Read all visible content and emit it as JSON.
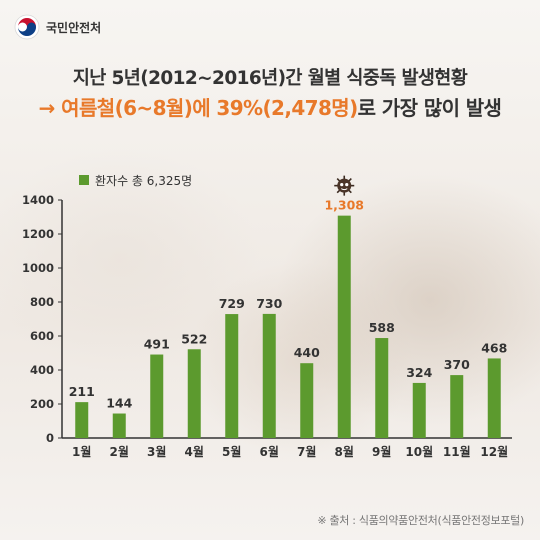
{
  "header": {
    "org_name": "국민안전처",
    "title_line1": "지난 5년(2012~2016년)간 월별 식중독 발생현황",
    "title_line2_highlight": "→ 여름철(6~8월)에 39%(2,478명)",
    "title_line2_rest": "로 가장 많이 발생"
  },
  "source": "※ 출처 : 식품의약품안전처(식품안전정보포털)",
  "colors": {
    "bar": "#5c9a2e",
    "highlight": "#e8792a",
    "axis": "#333333",
    "text": "#333333"
  },
  "chart_data": {
    "type": "bar",
    "title": "",
    "xlabel": "",
    "ylabel": "",
    "categories": [
      "1월",
      "2월",
      "3월",
      "4월",
      "5월",
      "6월",
      "7월",
      "8월",
      "9월",
      "10월",
      "11월",
      "12월"
    ],
    "series": [
      {
        "name": "환자수 총 6,325명",
        "values": [
          211,
          144,
          491,
          522,
          729,
          730,
          440,
          1308,
          588,
          324,
          370,
          468
        ]
      }
    ],
    "value_labels": [
      "211",
      "144",
      "491",
      "522",
      "729",
      "730",
      "440",
      "1,308",
      "588",
      "324",
      "370",
      "468"
    ],
    "highlight_index": 7,
    "highlight_icon": "virus-germ-icon",
    "ylim": [
      0,
      1400
    ],
    "yticks": [
      0,
      200,
      400,
      600,
      800,
      1000,
      1200,
      1400
    ],
    "grid": false,
    "legend_position": "top-left"
  }
}
